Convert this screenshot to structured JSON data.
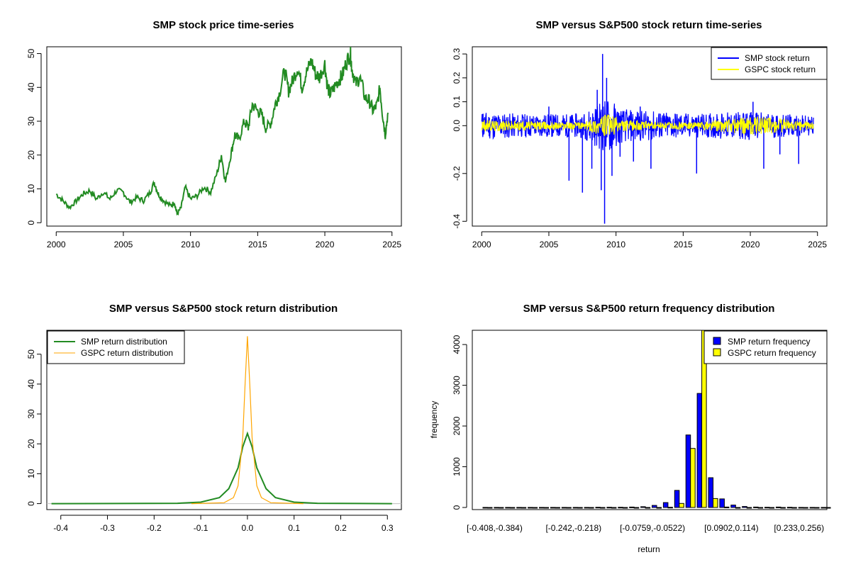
{
  "colors": {
    "green": "#228B22",
    "blue": "#0000FF",
    "yellow": "#FFFF00",
    "orange": "#FFA500",
    "axis": "#000000",
    "zero_line": "#BEBEBE"
  },
  "chart_data": [
    {
      "id": "price",
      "type": "line",
      "title": "SMP stock price time-series",
      "xlabel": "",
      "ylabel": "",
      "x_ticks": [
        "2000",
        "2005",
        "2010",
        "2015",
        "2020",
        "2025"
      ],
      "y_ticks": [
        "0",
        "10",
        "20",
        "30",
        "40",
        "50"
      ],
      "xlim": [
        1999.3,
        2025.7
      ],
      "ylim": [
        -1,
        52
      ],
      "series": [
        {
          "color": "green",
          "x": [
            2000.0,
            2000.5,
            2001.0,
            2001.5,
            2002.0,
            2002.5,
            2003.0,
            2003.5,
            2004.0,
            2004.5,
            2005.0,
            2005.5,
            2006.0,
            2006.5,
            2007.0,
            2007.3,
            2007.6,
            2008.0,
            2008.5,
            2008.8,
            2009.0,
            2009.3,
            2009.6,
            2010.0,
            2010.5,
            2011.0,
            2011.5,
            2012.0,
            2012.3,
            2012.6,
            2013.0,
            2013.3,
            2013.6,
            2014.0,
            2014.3,
            2014.6,
            2015.0,
            2015.3,
            2015.6,
            2016.0,
            2016.3,
            2016.6,
            2017.0,
            2017.3,
            2017.6,
            2018.0,
            2018.3,
            2018.6,
            2019.0,
            2019.3,
            2019.6,
            2020.0,
            2020.2,
            2020.4,
            2020.7,
            2021.0,
            2021.3,
            2021.6,
            2021.9,
            2022.0,
            2022.3,
            2022.6,
            2023.0,
            2023.3,
            2023.6,
            2023.9,
            2024.1,
            2024.3,
            2024.5,
            2024.7
          ],
          "y": [
            8.5,
            6.5,
            4.5,
            6.5,
            8.5,
            9.5,
            7.0,
            9.0,
            7.0,
            9.5,
            9.0,
            6.0,
            7.5,
            6.5,
            9.0,
            12.0,
            8.5,
            6.5,
            5.0,
            6.0,
            2.5,
            4.5,
            10.5,
            7.0,
            8.0,
            10.5,
            9.0,
            15.0,
            20.0,
            12.0,
            20.0,
            26.0,
            24.5,
            30.0,
            28.0,
            35.0,
            33.0,
            32.0,
            28.0,
            29.5,
            35.0,
            38.0,
            45.0,
            39.0,
            42.0,
            46.0,
            40.0,
            44.0,
            48.0,
            44.0,
            43.0,
            47.0,
            40.0,
            38.0,
            40.0,
            42.0,
            43.5,
            47.5,
            50.0,
            46.0,
            41.0,
            43.0,
            37.0,
            36.0,
            33.0,
            35.0,
            40.0,
            32.0,
            26.0,
            32.5
          ]
        }
      ]
    },
    {
      "id": "returns",
      "type": "line",
      "title": "SMP versus S&P500 stock return time-series",
      "xlabel": "",
      "ylabel": "",
      "x_ticks": [
        "2000",
        "2005",
        "2010",
        "2015",
        "2020",
        "2025"
      ],
      "y_ticks": [
        "-0.4",
        "-0.2",
        "0.0",
        "0.1",
        "0.2",
        "0.3"
      ],
      "xlim": [
        1999.3,
        2025.7
      ],
      "ylim": [
        -0.42,
        0.33
      ],
      "legend": {
        "position": "top-right",
        "entries": [
          "SMP stock return",
          "GSPC stock return"
        ]
      },
      "series": [
        {
          "name": "SMP stock return",
          "color": "blue",
          "spikes_x": [
            2000.1,
            2005.0,
            2006.5,
            2007.5,
            2008.2,
            2008.6,
            2008.9,
            2009.0,
            2009.15,
            2009.3,
            2009.7,
            2010.3,
            2011.3,
            2011.8,
            2012.6,
            2013.3,
            2014.4,
            2016.0,
            2020.2,
            2021.0,
            2022.2,
            2023.6
          ],
          "spikes_y": [
            0.05,
            0.08,
            -0.23,
            -0.28,
            -0.18,
            0.15,
            -0.27,
            0.3,
            -0.41,
            0.2,
            -0.21,
            -0.13,
            -0.15,
            0.08,
            -0.18,
            0.05,
            0.05,
            -0.2,
            0.1,
            -0.18,
            -0.12,
            -0.16
          ],
          "band_x": [
            2000.0,
            2003.0,
            2007.5,
            2008.8,
            2009.5,
            2010.5,
            2013.0,
            2016.0,
            2020.0,
            2024.7
          ],
          "band_half_width": [
            0.06,
            0.05,
            0.05,
            0.1,
            0.12,
            0.07,
            0.06,
            0.05,
            0.06,
            0.04
          ]
        },
        {
          "name": "GSPC stock return",
          "color": "yellow",
          "band_x": [
            2000.0,
            2003.0,
            2007.5,
            2008.8,
            2009.5,
            2010.5,
            2013.0,
            2016.0,
            2020.2,
            2024.7
          ],
          "band_half_width": [
            0.025,
            0.02,
            0.015,
            0.04,
            0.05,
            0.025,
            0.015,
            0.015,
            0.04,
            0.015
          ]
        }
      ]
    },
    {
      "id": "density",
      "type": "line",
      "title": "SMP versus S&P500 stock return distribution",
      "xlabel": "",
      "ylabel": "",
      "x_ticks": [
        "-0.4",
        "-0.3",
        "-0.2",
        "-0.1",
        "0.0",
        "0.1",
        "0.2",
        "0.3"
      ],
      "y_ticks": [
        "0",
        "10",
        "20",
        "30",
        "40",
        "50"
      ],
      "xlim": [
        -0.43,
        0.33
      ],
      "ylim": [
        -2,
        58
      ],
      "legend": {
        "position": "top-left",
        "entries": [
          "SMP return distribution",
          "GSPC return distribution"
        ]
      },
      "series": [
        {
          "name": "SMP return distribution",
          "color": "green",
          "x": [
            -0.42,
            -0.15,
            -0.1,
            -0.06,
            -0.04,
            -0.02,
            -0.01,
            0.0,
            0.01,
            0.02,
            0.04,
            0.06,
            0.1,
            0.15,
            0.31
          ],
          "y": [
            0,
            0.1,
            0.5,
            2.0,
            5.0,
            12.0,
            19.0,
            23.5,
            19.0,
            12.0,
            5.0,
            2.0,
            0.5,
            0.1,
            0
          ]
        },
        {
          "name": "GSPC return distribution",
          "color": "orange",
          "x": [
            -0.12,
            -0.05,
            -0.03,
            -0.02,
            -0.01,
            -0.005,
            0.0,
            0.005,
            0.01,
            0.02,
            0.03,
            0.05,
            0.12
          ],
          "y": [
            0,
            0.3,
            2.0,
            6.0,
            22.0,
            40.0,
            56.0,
            40.0,
            22.0,
            6.0,
            2.0,
            0.3,
            0
          ]
        }
      ]
    },
    {
      "id": "histogram",
      "type": "bar",
      "title": "SMP versus S&P500 return frequency distribution",
      "xlabel": "return",
      "ylabel": "frequency",
      "x_ticks": [
        "[-0.408,-0.384)",
        "[-0.242,-0.218)",
        "[-0.0759,-0.0522)",
        "[0.0902,0.114)",
        "[0.233,0.256)"
      ],
      "x_tick_bins": [
        0,
        7,
        14,
        21,
        27
      ],
      "y_ticks": [
        "0",
        "1000",
        "2000",
        "3000",
        "4000"
      ],
      "ylim": [
        0,
        4350
      ],
      "bin_count": 31,
      "legend": {
        "position": "top-right",
        "entries": [
          "SMP return frequency",
          "GSPC return frequency"
        ]
      },
      "series": [
        {
          "name": "SMP return frequency",
          "color": "blue",
          "values": [
            2,
            2,
            2,
            2,
            2,
            2,
            2,
            2,
            2,
            2,
            5,
            5,
            5,
            10,
            20,
            50,
            120,
            420,
            1780,
            2800,
            730,
            210,
            60,
            25,
            10,
            5,
            10,
            5,
            2,
            2,
            2
          ]
        },
        {
          "name": "GSPC return frequency",
          "color": "yellow",
          "values": [
            0,
            0,
            0,
            0,
            0,
            0,
            0,
            0,
            0,
            0,
            0,
            0,
            0,
            0,
            0,
            0,
            5,
            100,
            1450,
            4350,
            220,
            10,
            0,
            0,
            0,
            0,
            0,
            0,
            0,
            0,
            0
          ]
        }
      ]
    }
  ]
}
